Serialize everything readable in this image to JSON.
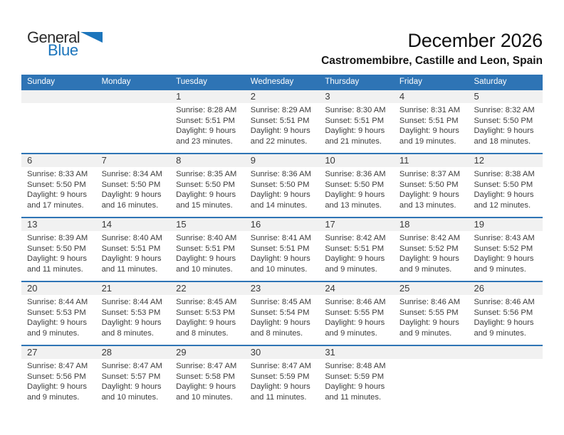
{
  "logo": {
    "word1": "General",
    "word2": "Blue",
    "triangle_icon": "blue-right-triangle"
  },
  "title": "December 2026",
  "subtitle": "Castromembibre, Castille and Leon, Spain",
  "colors": {
    "header_blue": "#2E74B5",
    "divider_blue": "#2E74B5",
    "day_band_gray": "#F1F1F1",
    "logo_blue": "#1C75BC"
  },
  "calendar": {
    "weekday_headers": [
      "Sunday",
      "Monday",
      "Tuesday",
      "Wednesday",
      "Thursday",
      "Friday",
      "Saturday"
    ],
    "labels": {
      "sunrise": "Sunrise:",
      "sunset": "Sunset:",
      "daylight": "Daylight:"
    },
    "weeks": [
      [
        null,
        null,
        {
          "day": "1",
          "sunrise": "8:28 AM",
          "sunset": "5:51 PM",
          "daylight": [
            "9 hours",
            "and 23 minutes."
          ]
        },
        {
          "day": "2",
          "sunrise": "8:29 AM",
          "sunset": "5:51 PM",
          "daylight": [
            "9 hours",
            "and 22 minutes."
          ]
        },
        {
          "day": "3",
          "sunrise": "8:30 AM",
          "sunset": "5:51 PM",
          "daylight": [
            "9 hours",
            "and 21 minutes."
          ]
        },
        {
          "day": "4",
          "sunrise": "8:31 AM",
          "sunset": "5:51 PM",
          "daylight": [
            "9 hours",
            "and 19 minutes."
          ]
        },
        {
          "day": "5",
          "sunrise": "8:32 AM",
          "sunset": "5:50 PM",
          "daylight": [
            "9 hours",
            "and 18 minutes."
          ]
        }
      ],
      [
        {
          "day": "6",
          "sunrise": "8:33 AM",
          "sunset": "5:50 PM",
          "daylight": [
            "9 hours",
            "and 17 minutes."
          ]
        },
        {
          "day": "7",
          "sunrise": "8:34 AM",
          "sunset": "5:50 PM",
          "daylight": [
            "9 hours",
            "and 16 minutes."
          ]
        },
        {
          "day": "8",
          "sunrise": "8:35 AM",
          "sunset": "5:50 PM",
          "daylight": [
            "9 hours",
            "and 15 minutes."
          ]
        },
        {
          "day": "9",
          "sunrise": "8:36 AM",
          "sunset": "5:50 PM",
          "daylight": [
            "9 hours",
            "and 14 minutes."
          ]
        },
        {
          "day": "10",
          "sunrise": "8:36 AM",
          "sunset": "5:50 PM",
          "daylight": [
            "9 hours",
            "and 13 minutes."
          ]
        },
        {
          "day": "11",
          "sunrise": "8:37 AM",
          "sunset": "5:50 PM",
          "daylight": [
            "9 hours",
            "and 13 minutes."
          ]
        },
        {
          "day": "12",
          "sunrise": "8:38 AM",
          "sunset": "5:50 PM",
          "daylight": [
            "9 hours",
            "and 12 minutes."
          ]
        }
      ],
      [
        {
          "day": "13",
          "sunrise": "8:39 AM",
          "sunset": "5:50 PM",
          "daylight": [
            "9 hours",
            "and 11 minutes."
          ]
        },
        {
          "day": "14",
          "sunrise": "8:40 AM",
          "sunset": "5:51 PM",
          "daylight": [
            "9 hours",
            "and 11 minutes."
          ]
        },
        {
          "day": "15",
          "sunrise": "8:40 AM",
          "sunset": "5:51 PM",
          "daylight": [
            "9 hours",
            "and 10 minutes."
          ]
        },
        {
          "day": "16",
          "sunrise": "8:41 AM",
          "sunset": "5:51 PM",
          "daylight": [
            "9 hours",
            "and 10 minutes."
          ]
        },
        {
          "day": "17",
          "sunrise": "8:42 AM",
          "sunset": "5:51 PM",
          "daylight": [
            "9 hours",
            "and 9 minutes."
          ]
        },
        {
          "day": "18",
          "sunrise": "8:42 AM",
          "sunset": "5:52 PM",
          "daylight": [
            "9 hours",
            "and 9 minutes."
          ]
        },
        {
          "day": "19",
          "sunrise": "8:43 AM",
          "sunset": "5:52 PM",
          "daylight": [
            "9 hours",
            "and 9 minutes."
          ]
        }
      ],
      [
        {
          "day": "20",
          "sunrise": "8:44 AM",
          "sunset": "5:53 PM",
          "daylight": [
            "9 hours",
            "and 9 minutes."
          ]
        },
        {
          "day": "21",
          "sunrise": "8:44 AM",
          "sunset": "5:53 PM",
          "daylight": [
            "9 hours",
            "and 8 minutes."
          ]
        },
        {
          "day": "22",
          "sunrise": "8:45 AM",
          "sunset": "5:53 PM",
          "daylight": [
            "9 hours",
            "and 8 minutes."
          ]
        },
        {
          "day": "23",
          "sunrise": "8:45 AM",
          "sunset": "5:54 PM",
          "daylight": [
            "9 hours",
            "and 8 minutes."
          ]
        },
        {
          "day": "24",
          "sunrise": "8:46 AM",
          "sunset": "5:55 PM",
          "daylight": [
            "9 hours",
            "and 9 minutes."
          ]
        },
        {
          "day": "25",
          "sunrise": "8:46 AM",
          "sunset": "5:55 PM",
          "daylight": [
            "9 hours",
            "and 9 minutes."
          ]
        },
        {
          "day": "26",
          "sunrise": "8:46 AM",
          "sunset": "5:56 PM",
          "daylight": [
            "9 hours",
            "and 9 minutes."
          ]
        }
      ],
      [
        {
          "day": "27",
          "sunrise": "8:47 AM",
          "sunset": "5:56 PM",
          "daylight": [
            "9 hours",
            "and 9 minutes."
          ]
        },
        {
          "day": "28",
          "sunrise": "8:47 AM",
          "sunset": "5:57 PM",
          "daylight": [
            "9 hours",
            "and 10 minutes."
          ]
        },
        {
          "day": "29",
          "sunrise": "8:47 AM",
          "sunset": "5:58 PM",
          "daylight": [
            "9 hours",
            "and 10 minutes."
          ]
        },
        {
          "day": "30",
          "sunrise": "8:47 AM",
          "sunset": "5:59 PM",
          "daylight": [
            "9 hours",
            "and 11 minutes."
          ]
        },
        {
          "day": "31",
          "sunrise": "8:48 AM",
          "sunset": "5:59 PM",
          "daylight": [
            "9 hours",
            "and 11 minutes."
          ]
        },
        null,
        null
      ]
    ]
  }
}
